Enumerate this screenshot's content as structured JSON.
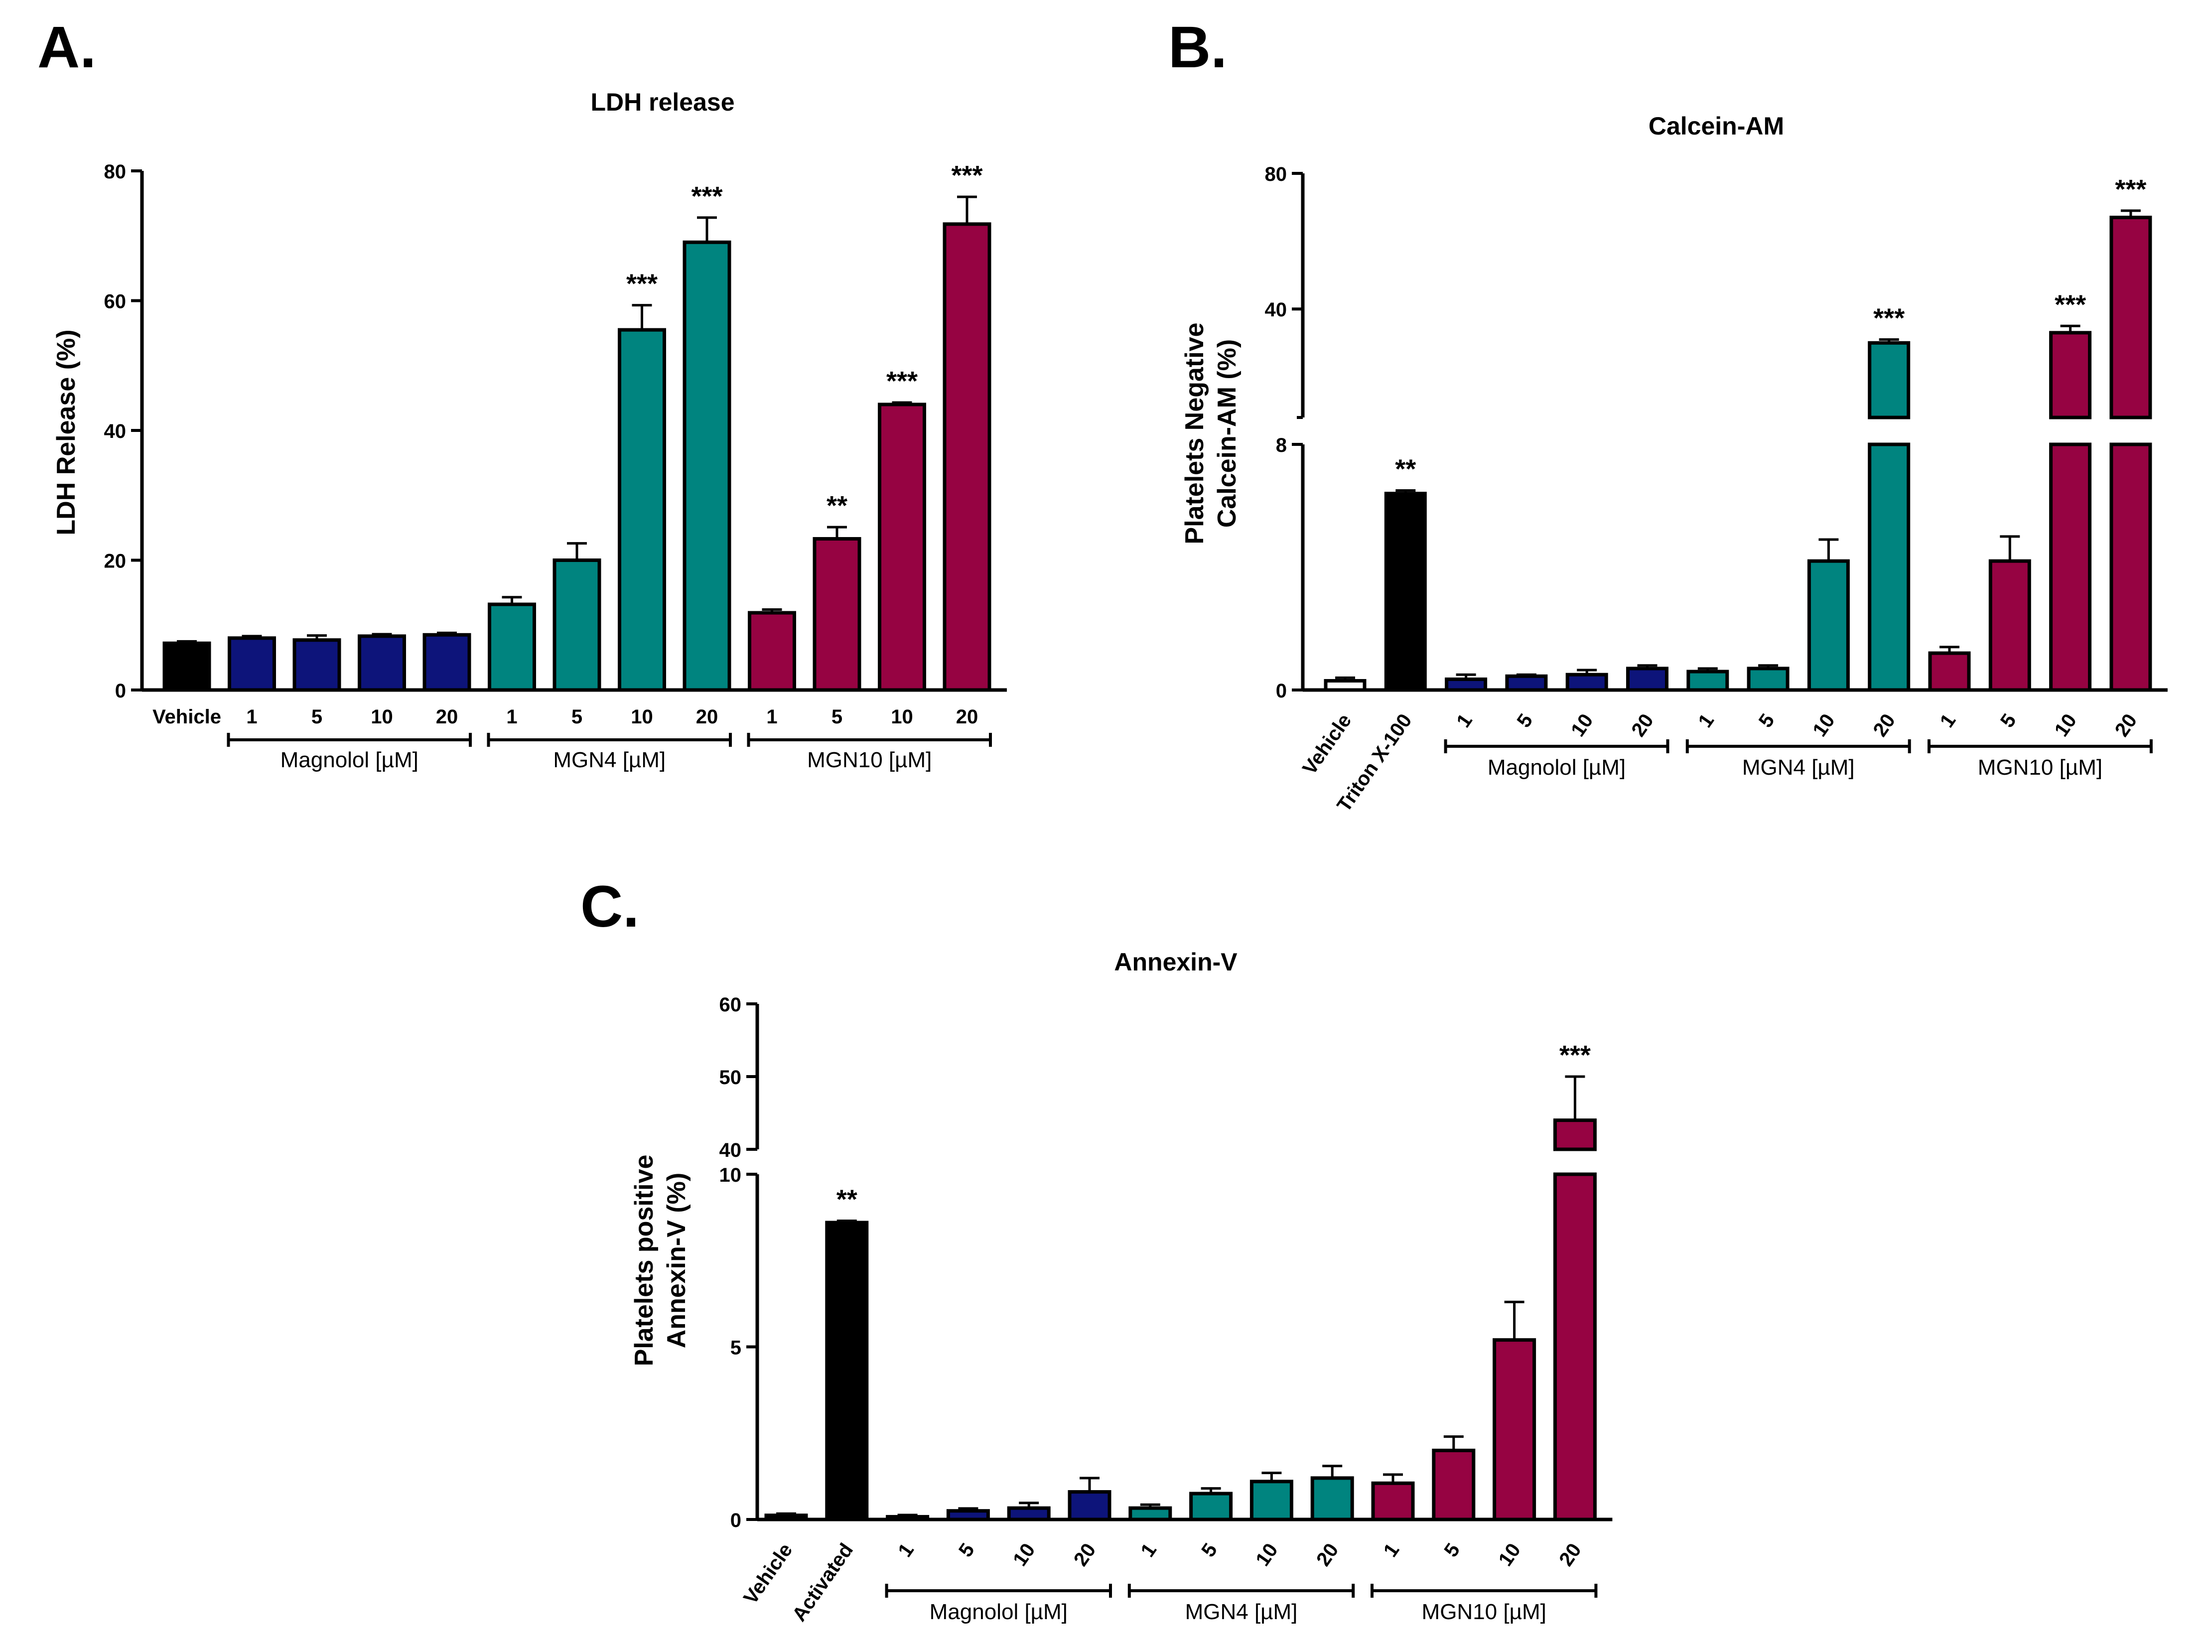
{
  "colors": {
    "vehicle": "#000000",
    "magnolol": "#0d147a",
    "mgn4": "#00847f",
    "mgn10": "#960342",
    "white": "#ffffff",
    "axis": "#000000"
  },
  "chart_data": [
    {
      "panel_label": "A.",
      "type": "bar",
      "title": "LDH release",
      "ylabel": "LDH Release (%)",
      "ylim": [
        0,
        80
      ],
      "yticks": [
        "0",
        "20",
        "40",
        "60",
        "80"
      ],
      "categories": [
        "Vehicle",
        "1",
        "5",
        "10",
        "20",
        "1",
        "5",
        "10",
        "20",
        "1",
        "5",
        "10",
        "20"
      ],
      "values": [
        7.2,
        8.0,
        7.7,
        8.3,
        8.5,
        13.2,
        20.0,
        55.5,
        69.0,
        11.9,
        23.3,
        44.0,
        71.8
      ],
      "errors": [
        0.3,
        0.3,
        0.7,
        0.3,
        0.3,
        1.1,
        2.6,
        3.8,
        3.8,
        0.5,
        1.8,
        0.3,
        4.2
      ],
      "significance": [
        "",
        "",
        "",
        "",
        "",
        "",
        "",
        "***",
        "***",
        "",
        "**",
        "***",
        "***"
      ],
      "color_keys": [
        "vehicle",
        "magnolol",
        "magnolol",
        "magnolol",
        "magnolol",
        "mgn4",
        "mgn4",
        "mgn4",
        "mgn4",
        "mgn10",
        "mgn10",
        "mgn10",
        "mgn10"
      ],
      "groups": [
        {
          "label": "Magnolol [µM]",
          "from": 1,
          "to": 4
        },
        {
          "label": "MGN4 [µM]",
          "from": 5,
          "to": 8
        },
        {
          "label": "MGN10 [µM]",
          "from": 9,
          "to": 12
        }
      ]
    },
    {
      "panel_label": "B.",
      "type": "bar",
      "title": "Calcein-AM",
      "ylabel_lines": [
        "Platelets Negative",
        "Calcein-AM (%)"
      ],
      "axis_break": {
        "lower": [
          0,
          8
        ],
        "upper": [
          8,
          80
        ]
      },
      "yticks_lower": [
        "0",
        "8"
      ],
      "yticks_upper": [
        "40",
        "80"
      ],
      "categories": [
        "Vehicle",
        "Triton X-100",
        "1",
        "5",
        "10",
        "20",
        "1",
        "5",
        "10",
        "20",
        "1",
        "5",
        "10",
        "20"
      ],
      "values": [
        0.3,
        6.4,
        0.35,
        0.45,
        0.5,
        0.7,
        0.6,
        0.7,
        4.2,
        30.0,
        1.2,
        4.2,
        33.0,
        67.0
      ],
      "errors": [
        0.1,
        0.1,
        0.15,
        0.05,
        0.15,
        0.1,
        0.1,
        0.1,
        0.7,
        1.0,
        0.2,
        0.8,
        2.0,
        2.0
      ],
      "significance": [
        "",
        "**",
        "",
        "",
        "",
        "",
        "",
        "",
        "",
        "***",
        "",
        "",
        "***",
        "***"
      ],
      "color_keys": [
        "white",
        "vehicle",
        "magnolol",
        "magnolol",
        "magnolol",
        "magnolol",
        "mgn4",
        "mgn4",
        "mgn4",
        "mgn4",
        "mgn10",
        "mgn10",
        "mgn10",
        "mgn10"
      ],
      "groups": [
        {
          "label": "Magnolol [µM]",
          "from": 2,
          "to": 5
        },
        {
          "label": "MGN4 [µM]",
          "from": 6,
          "to": 9
        },
        {
          "label": "MGN10 [µM]",
          "from": 10,
          "to": 13
        }
      ]
    },
    {
      "panel_label": "C.",
      "type": "bar",
      "title": "Annexin-V",
      "ylabel_lines": [
        "Platelets positive",
        "Annexin-V (%)"
      ],
      "axis_break": {
        "lower": [
          0,
          10
        ],
        "upper": [
          40,
          60
        ]
      },
      "yticks_lower": [
        "0",
        "5",
        "10"
      ],
      "yticks_upper": [
        "40",
        "50",
        "60"
      ],
      "categories": [
        "Vehicle",
        "Activated",
        "1",
        "5",
        "10",
        "20",
        "1",
        "5",
        "10",
        "20",
        "1",
        "5",
        "10",
        "20"
      ],
      "values": [
        0.12,
        8.6,
        0.08,
        0.25,
        0.33,
        0.8,
        0.33,
        0.75,
        1.1,
        1.2,
        1.05,
        2.0,
        5.2,
        44.0
      ],
      "errors": [
        0.05,
        0.05,
        0.05,
        0.07,
        0.15,
        0.4,
        0.1,
        0.15,
        0.25,
        0.35,
        0.25,
        0.4,
        1.1,
        6.0
      ],
      "significance": [
        "",
        "**",
        "",
        "",
        "",
        "",
        "",
        "",
        "",
        "",
        "",
        "",
        "",
        "***"
      ],
      "color_keys": [
        "vehicle",
        "vehicle",
        "magnolol",
        "magnolol",
        "magnolol",
        "magnolol",
        "mgn4",
        "mgn4",
        "mgn4",
        "mgn4",
        "mgn10",
        "mgn10",
        "mgn10",
        "mgn10"
      ],
      "groups": [
        {
          "label": "Magnolol [µM]",
          "from": 2,
          "to": 5
        },
        {
          "label": "MGN4 [µM]",
          "from": 6,
          "to": 9
        },
        {
          "label": "MGN10 [µM]",
          "from": 10,
          "to": 13
        }
      ]
    }
  ]
}
